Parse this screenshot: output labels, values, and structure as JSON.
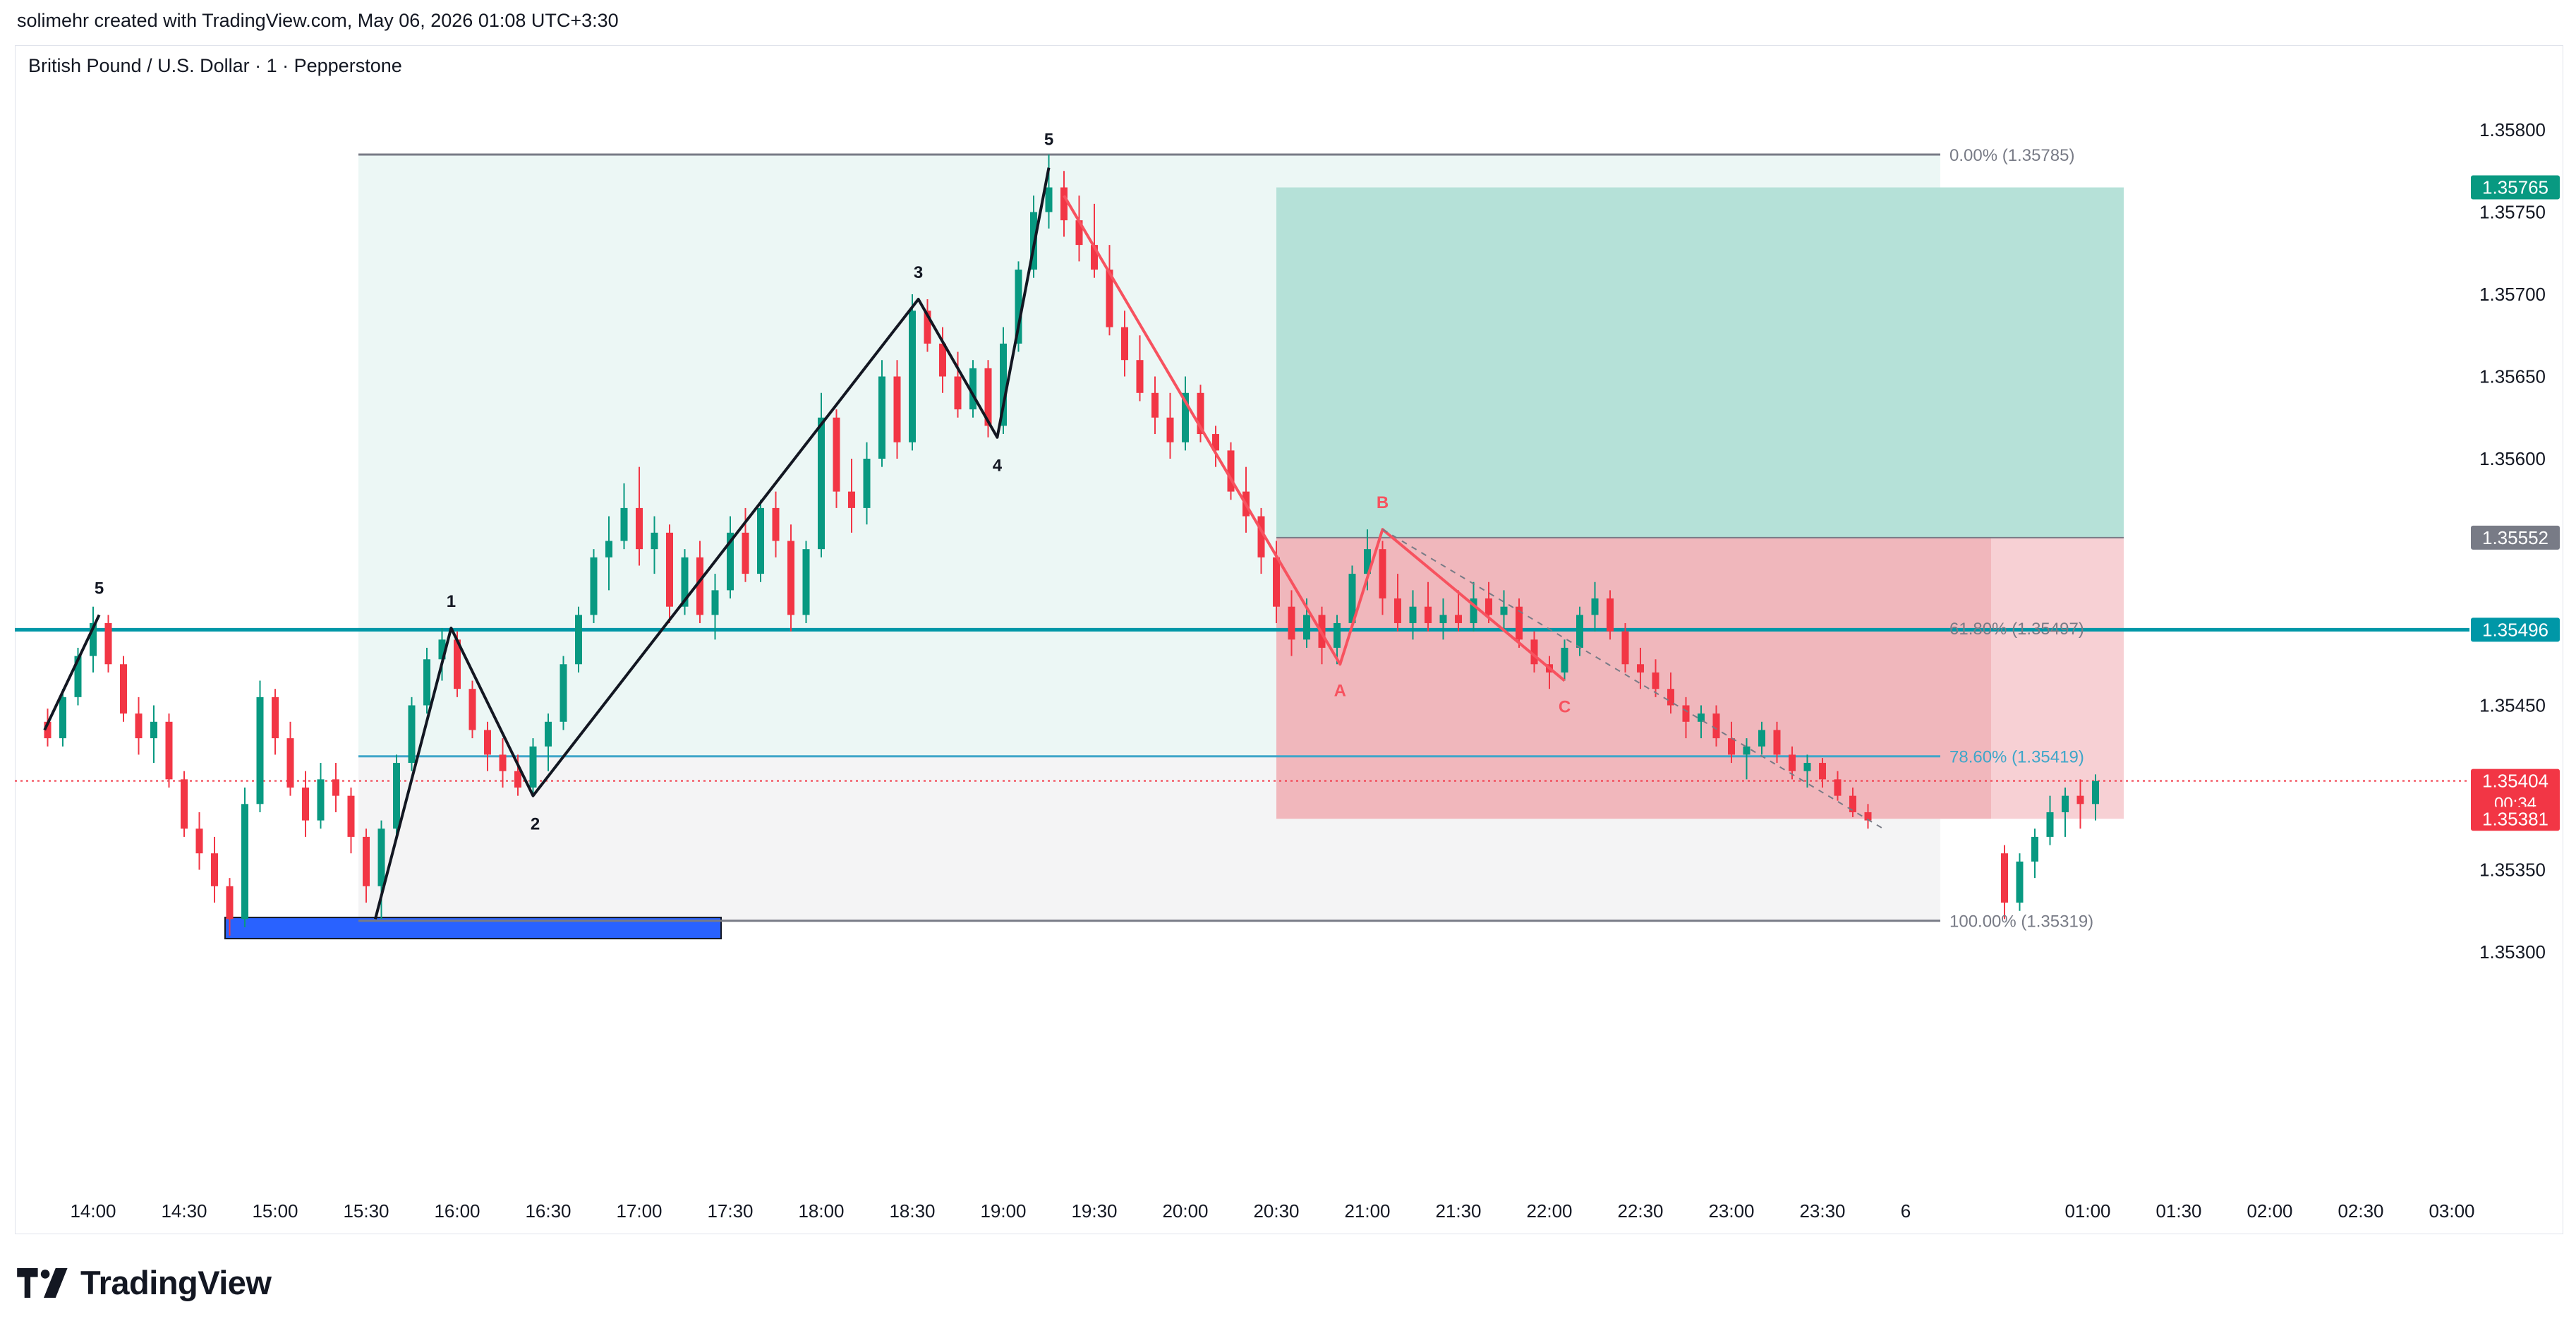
{
  "header": {
    "attribution": "solimehr created with TradingView.com, May 06, 2026 01:08 UTC+3:30"
  },
  "symbol": {
    "title": "British Pound / U.S. Dollar · 1 · Pepperstone"
  },
  "logo": {
    "text": "TradingView",
    "icon": "tradingview-logo-icon"
  },
  "colors": {
    "bull": "#089981",
    "bear": "#f23645",
    "level_line": "#0097a7",
    "fib_line": "#787b86",
    "fib_text": "#787b86",
    "fib_786": "#3ea6c9",
    "profit_zone": "#b2dfd6",
    "loss_zone": "#f0b3b8",
    "wave_line": "#131722",
    "abc_line": "#f7525f",
    "order_block": "#2962ff"
  },
  "chart_data": {
    "type": "candlestick",
    "title": "British Pound / U.S. Dollar · 1 · Pepperstone",
    "x_ticks": [
      "14:00",
      "14:30",
      "15:00",
      "15:30",
      "16:00",
      "16:30",
      "17:00",
      "17:30",
      "18:00",
      "18:30",
      "19:00",
      "19:30",
      "20:00",
      "20:30",
      "21:00",
      "21:30",
      "22:00",
      "22:30",
      "23:00",
      "23:30",
      "6",
      "01:00",
      "01:30",
      "02:00",
      "02:30",
      "03:00"
    ],
    "y_ticks": [
      "1.35800",
      "1.35750",
      "1.35700",
      "1.35650",
      "1.35600",
      "1.35450",
      "1.35350",
      "1.35300"
    ],
    "ylim": [
      1.35283,
      1.35836
    ],
    "price_labels": [
      {
        "text": "1.35765",
        "value": 1.35765,
        "color": "#089981"
      },
      {
        "text": "1.35552",
        "value": 1.35552,
        "color": "#787b86"
      },
      {
        "text": "1.35496",
        "value": 1.35496,
        "color": "#0097a7"
      },
      {
        "text": "1.35404",
        "value": 1.35404,
        "color": "#f23645",
        "sub": "00:34"
      },
      {
        "text": "1.35381",
        "value": 1.35381,
        "color": "#f23645"
      }
    ],
    "fib_levels": [
      {
        "label": "0.00% (1.35785)",
        "value": 1.35785
      },
      {
        "label": "61.80% (1.35497)",
        "value": 1.35497
      },
      {
        "label": "78.60% (1.35419)",
        "value": 1.35419
      },
      {
        "label": "100.00% (1.35319)",
        "value": 1.35319
      }
    ],
    "horizontal_level": 1.35496,
    "last_price": 1.35404,
    "position": {
      "stop": 1.35381,
      "entry": 1.35552,
      "target": 1.35765,
      "from": "20:30",
      "to": "01:25"
    },
    "impulse_waves": [
      {
        "label": "1",
        "time": "15:58",
        "price": 1.35497
      },
      {
        "label": "2",
        "time": "16:25",
        "price": 1.35395
      },
      {
        "label": "3",
        "time": "18:32",
        "price": 1.35697
      },
      {
        "label": "4",
        "time": "18:58",
        "price": 1.35613
      },
      {
        "label": "5",
        "time": "19:15",
        "price": 1.35777
      }
    ],
    "prior_wave": [
      {
        "label": "",
        "time": "13:46",
        "price": 1.35435
      },
      {
        "label": "5",
        "time": "14:02",
        "price": 1.35505
      }
    ],
    "abc_waves": [
      {
        "label": "",
        "time": "19:20",
        "price": 1.3576
      },
      {
        "label": "A",
        "time": "20:51",
        "price": 1.35475
      },
      {
        "label": "B",
        "time": "21:05",
        "price": 1.35557
      },
      {
        "label": "C",
        "time": "22:05",
        "price": 1.35465
      }
    ],
    "candles": [
      {
        "t": "13:45",
        "o": 1.3544,
        "h": 1.35448,
        "l": 1.35425,
        "c": 1.3543
      },
      {
        "t": "13:50",
        "o": 1.3543,
        "h": 1.3546,
        "l": 1.35425,
        "c": 1.35455
      },
      {
        "t": "13:55",
        "o": 1.35455,
        "h": 1.35485,
        "l": 1.3545,
        "c": 1.3548
      },
      {
        "t": "14:00",
        "o": 1.3548,
        "h": 1.3551,
        "l": 1.3547,
        "c": 1.355
      },
      {
        "t": "14:05",
        "o": 1.355,
        "h": 1.35505,
        "l": 1.3547,
        "c": 1.35475
      },
      {
        "t": "14:10",
        "o": 1.35475,
        "h": 1.3548,
        "l": 1.3544,
        "c": 1.35445
      },
      {
        "t": "14:15",
        "o": 1.35445,
        "h": 1.35455,
        "l": 1.3542,
        "c": 1.3543
      },
      {
        "t": "14:20",
        "o": 1.3543,
        "h": 1.3545,
        "l": 1.35415,
        "c": 1.3544
      },
      {
        "t": "14:25",
        "o": 1.3544,
        "h": 1.35445,
        "l": 1.354,
        "c": 1.35405
      },
      {
        "t": "14:30",
        "o": 1.35405,
        "h": 1.3541,
        "l": 1.3537,
        "c": 1.35375
      },
      {
        "t": "14:35",
        "o": 1.35375,
        "h": 1.35385,
        "l": 1.3535,
        "c": 1.3536
      },
      {
        "t": "14:40",
        "o": 1.3536,
        "h": 1.3537,
        "l": 1.3533,
        "c": 1.3534
      },
      {
        "t": "14:45",
        "o": 1.3534,
        "h": 1.35345,
        "l": 1.3531,
        "c": 1.3532
      },
      {
        "t": "14:50",
        "o": 1.3532,
        "h": 1.354,
        "l": 1.35315,
        "c": 1.3539
      },
      {
        "t": "14:55",
        "o": 1.3539,
        "h": 1.35465,
        "l": 1.35385,
        "c": 1.35455
      },
      {
        "t": "15:00",
        "o": 1.35455,
        "h": 1.3546,
        "l": 1.3542,
        "c": 1.3543
      },
      {
        "t": "15:05",
        "o": 1.3543,
        "h": 1.3544,
        "l": 1.35395,
        "c": 1.354
      },
      {
        "t": "15:10",
        "o": 1.354,
        "h": 1.3541,
        "l": 1.3537,
        "c": 1.3538
      },
      {
        "t": "15:15",
        "o": 1.3538,
        "h": 1.35415,
        "l": 1.35375,
        "c": 1.35405
      },
      {
        "t": "15:20",
        "o": 1.35405,
        "h": 1.35415,
        "l": 1.35385,
        "c": 1.35395
      },
      {
        "t": "15:25",
        "o": 1.35395,
        "h": 1.354,
        "l": 1.3536,
        "c": 1.3537
      },
      {
        "t": "15:30",
        "o": 1.3537,
        "h": 1.35375,
        "l": 1.3533,
        "c": 1.3534
      },
      {
        "t": "15:35",
        "o": 1.3534,
        "h": 1.3538,
        "l": 1.3532,
        "c": 1.35375
      },
      {
        "t": "15:40",
        "o": 1.35375,
        "h": 1.3542,
        "l": 1.3537,
        "c": 1.35415
      },
      {
        "t": "15:45",
        "o": 1.35415,
        "h": 1.35455,
        "l": 1.3541,
        "c": 1.3545
      },
      {
        "t": "15:50",
        "o": 1.3545,
        "h": 1.35485,
        "l": 1.35445,
        "c": 1.35478
      },
      {
        "t": "15:55",
        "o": 1.35478,
        "h": 1.35497,
        "l": 1.35465,
        "c": 1.3549
      },
      {
        "t": "16:00",
        "o": 1.3549,
        "h": 1.35495,
        "l": 1.35455,
        "c": 1.3546
      },
      {
        "t": "16:05",
        "o": 1.3546,
        "h": 1.35465,
        "l": 1.3543,
        "c": 1.35435
      },
      {
        "t": "16:10",
        "o": 1.35435,
        "h": 1.3544,
        "l": 1.3541,
        "c": 1.3542
      },
      {
        "t": "16:15",
        "o": 1.3542,
        "h": 1.3543,
        "l": 1.354,
        "c": 1.3541
      },
      {
        "t": "16:20",
        "o": 1.3541,
        "h": 1.3542,
        "l": 1.35395,
        "c": 1.354
      },
      {
        "t": "16:25",
        "o": 1.354,
        "h": 1.3543,
        "l": 1.35395,
        "c": 1.35425
      },
      {
        "t": "16:30",
        "o": 1.35425,
        "h": 1.35445,
        "l": 1.3541,
        "c": 1.3544
      },
      {
        "t": "16:35",
        "o": 1.3544,
        "h": 1.3548,
        "l": 1.35435,
        "c": 1.35475
      },
      {
        "t": "16:40",
        "o": 1.35475,
        "h": 1.3551,
        "l": 1.3547,
        "c": 1.35505
      },
      {
        "t": "16:45",
        "o": 1.35505,
        "h": 1.35545,
        "l": 1.355,
        "c": 1.3554
      },
      {
        "t": "16:50",
        "o": 1.3554,
        "h": 1.35565,
        "l": 1.3552,
        "c": 1.3555
      },
      {
        "t": "16:55",
        "o": 1.3555,
        "h": 1.35585,
        "l": 1.35545,
        "c": 1.3557
      },
      {
        "t": "17:00",
        "o": 1.3557,
        "h": 1.35595,
        "l": 1.35535,
        "c": 1.35545
      },
      {
        "t": "17:05",
        "o": 1.35545,
        "h": 1.35565,
        "l": 1.3553,
        "c": 1.35555
      },
      {
        "t": "17:10",
        "o": 1.35555,
        "h": 1.3556,
        "l": 1.355,
        "c": 1.3551
      },
      {
        "t": "17:15",
        "o": 1.3551,
        "h": 1.35545,
        "l": 1.35505,
        "c": 1.3554
      },
      {
        "t": "17:20",
        "o": 1.3554,
        "h": 1.3555,
        "l": 1.355,
        "c": 1.35505
      },
      {
        "t": "17:25",
        "o": 1.35505,
        "h": 1.3553,
        "l": 1.3549,
        "c": 1.3552
      },
      {
        "t": "17:30",
        "o": 1.3552,
        "h": 1.35565,
        "l": 1.35515,
        "c": 1.35555
      },
      {
        "t": "17:35",
        "o": 1.35555,
        "h": 1.3557,
        "l": 1.35525,
        "c": 1.3553
      },
      {
        "t": "17:40",
        "o": 1.3553,
        "h": 1.35575,
        "l": 1.35525,
        "c": 1.3557
      },
      {
        "t": "17:45",
        "o": 1.3557,
        "h": 1.3558,
        "l": 1.3554,
        "c": 1.3555
      },
      {
        "t": "17:50",
        "o": 1.3555,
        "h": 1.3556,
        "l": 1.35495,
        "c": 1.35505
      },
      {
        "t": "17:55",
        "o": 1.35505,
        "h": 1.3555,
        "l": 1.355,
        "c": 1.35545
      },
      {
        "t": "18:00",
        "o": 1.35545,
        "h": 1.3564,
        "l": 1.3554,
        "c": 1.35625
      },
      {
        "t": "18:05",
        "o": 1.35625,
        "h": 1.3563,
        "l": 1.3557,
        "c": 1.3558
      },
      {
        "t": "18:10",
        "o": 1.3558,
        "h": 1.356,
        "l": 1.35555,
        "c": 1.3557
      },
      {
        "t": "18:15",
        "o": 1.3557,
        "h": 1.3561,
        "l": 1.3556,
        "c": 1.356
      },
      {
        "t": "18:20",
        "o": 1.356,
        "h": 1.3566,
        "l": 1.35595,
        "c": 1.3565
      },
      {
        "t": "18:25",
        "o": 1.3565,
        "h": 1.3566,
        "l": 1.356,
        "c": 1.3561
      },
      {
        "t": "18:30",
        "o": 1.3561,
        "h": 1.357,
        "l": 1.35605,
        "c": 1.3569
      },
      {
        "t": "18:35",
        "o": 1.3569,
        "h": 1.35697,
        "l": 1.35665,
        "c": 1.3567
      },
      {
        "t": "18:40",
        "o": 1.3567,
        "h": 1.3568,
        "l": 1.3564,
        "c": 1.3565
      },
      {
        "t": "18:45",
        "o": 1.3565,
        "h": 1.35665,
        "l": 1.35625,
        "c": 1.3563
      },
      {
        "t": "18:50",
        "o": 1.3563,
        "h": 1.3566,
        "l": 1.35625,
        "c": 1.35655
      },
      {
        "t": "18:55",
        "o": 1.35655,
        "h": 1.3566,
        "l": 1.35613,
        "c": 1.3562
      },
      {
        "t": "19:00",
        "o": 1.3562,
        "h": 1.3568,
        "l": 1.35615,
        "c": 1.3567
      },
      {
        "t": "19:05",
        "o": 1.3567,
        "h": 1.3572,
        "l": 1.35665,
        "c": 1.35715
      },
      {
        "t": "19:10",
        "o": 1.35715,
        "h": 1.3576,
        "l": 1.3571,
        "c": 1.3575
      },
      {
        "t": "19:15",
        "o": 1.3575,
        "h": 1.35785,
        "l": 1.3574,
        "c": 1.35765
      },
      {
        "t": "19:20",
        "o": 1.35765,
        "h": 1.35775,
        "l": 1.35735,
        "c": 1.35745
      },
      {
        "t": "19:25",
        "o": 1.35745,
        "h": 1.3576,
        "l": 1.3572,
        "c": 1.3573
      },
      {
        "t": "19:30",
        "o": 1.3573,
        "h": 1.35755,
        "l": 1.3571,
        "c": 1.35715
      },
      {
        "t": "19:35",
        "o": 1.35715,
        "h": 1.3573,
        "l": 1.35675,
        "c": 1.3568
      },
      {
        "t": "19:40",
        "o": 1.3568,
        "h": 1.3569,
        "l": 1.3565,
        "c": 1.3566
      },
      {
        "t": "19:45",
        "o": 1.3566,
        "h": 1.35675,
        "l": 1.35635,
        "c": 1.3564
      },
      {
        "t": "19:50",
        "o": 1.3564,
        "h": 1.3565,
        "l": 1.35615,
        "c": 1.35625
      },
      {
        "t": "19:55",
        "o": 1.35625,
        "h": 1.3564,
        "l": 1.356,
        "c": 1.3561
      },
      {
        "t": "20:00",
        "o": 1.3561,
        "h": 1.3565,
        "l": 1.35605,
        "c": 1.3564
      },
      {
        "t": "20:05",
        "o": 1.3564,
        "h": 1.35645,
        "l": 1.3561,
        "c": 1.35615
      },
      {
        "t": "20:10",
        "o": 1.35615,
        "h": 1.3562,
        "l": 1.35595,
        "c": 1.35605
      },
      {
        "t": "20:15",
        "o": 1.35605,
        "h": 1.3561,
        "l": 1.35575,
        "c": 1.3558
      },
      {
        "t": "20:20",
        "o": 1.3558,
        "h": 1.35595,
        "l": 1.35555,
        "c": 1.35565
      },
      {
        "t": "20:25",
        "o": 1.35565,
        "h": 1.3557,
        "l": 1.3553,
        "c": 1.3554
      },
      {
        "t": "20:30",
        "o": 1.3554,
        "h": 1.3555,
        "l": 1.355,
        "c": 1.3551
      },
      {
        "t": "20:35",
        "o": 1.3551,
        "h": 1.3552,
        "l": 1.3548,
        "c": 1.3549
      },
      {
        "t": "20:40",
        "o": 1.3549,
        "h": 1.35515,
        "l": 1.35485,
        "c": 1.35505
      },
      {
        "t": "20:45",
        "o": 1.35505,
        "h": 1.3551,
        "l": 1.35475,
        "c": 1.35485
      },
      {
        "t": "20:50",
        "o": 1.35485,
        "h": 1.35505,
        "l": 1.35475,
        "c": 1.355
      },
      {
        "t": "20:55",
        "o": 1.355,
        "h": 1.35535,
        "l": 1.35495,
        "c": 1.3553
      },
      {
        "t": "21:00",
        "o": 1.3553,
        "h": 1.35557,
        "l": 1.3552,
        "c": 1.35545
      },
      {
        "t": "21:05",
        "o": 1.35545,
        "h": 1.3555,
        "l": 1.35505,
        "c": 1.35515
      },
      {
        "t": "21:10",
        "o": 1.35515,
        "h": 1.3553,
        "l": 1.35495,
        "c": 1.355
      },
      {
        "t": "21:15",
        "o": 1.355,
        "h": 1.3552,
        "l": 1.3549,
        "c": 1.3551
      },
      {
        "t": "21:20",
        "o": 1.3551,
        "h": 1.35525,
        "l": 1.35495,
        "c": 1.355
      },
      {
        "t": "21:25",
        "o": 1.355,
        "h": 1.35515,
        "l": 1.3549,
        "c": 1.35505
      },
      {
        "t": "21:30",
        "o": 1.35505,
        "h": 1.3552,
        "l": 1.35495,
        "c": 1.355
      },
      {
        "t": "21:35",
        "o": 1.355,
        "h": 1.35525,
        "l": 1.35495,
        "c": 1.35515
      },
      {
        "t": "21:40",
        "o": 1.35515,
        "h": 1.35525,
        "l": 1.355,
        "c": 1.35505
      },
      {
        "t": "21:45",
        "o": 1.35505,
        "h": 1.3552,
        "l": 1.35495,
        "c": 1.3551
      },
      {
        "t": "21:50",
        "o": 1.3551,
        "h": 1.35515,
        "l": 1.35485,
        "c": 1.3549
      },
      {
        "t": "21:55",
        "o": 1.3549,
        "h": 1.35495,
        "l": 1.3547,
        "c": 1.35475
      },
      {
        "t": "22:00",
        "o": 1.35475,
        "h": 1.3548,
        "l": 1.3546,
        "c": 1.3547
      },
      {
        "t": "22:05",
        "o": 1.3547,
        "h": 1.3549,
        "l": 1.35465,
        "c": 1.35485
      },
      {
        "t": "22:10",
        "o": 1.35485,
        "h": 1.3551,
        "l": 1.3548,
        "c": 1.35505
      },
      {
        "t": "22:15",
        "o": 1.35505,
        "h": 1.35525,
        "l": 1.35495,
        "c": 1.35515
      },
      {
        "t": "22:20",
        "o": 1.35515,
        "h": 1.3552,
        "l": 1.3549,
        "c": 1.35495
      },
      {
        "t": "22:25",
        "o": 1.35495,
        "h": 1.355,
        "l": 1.3547,
        "c": 1.35475
      },
      {
        "t": "22:30",
        "o": 1.35475,
        "h": 1.35485,
        "l": 1.3546,
        "c": 1.3547
      },
      {
        "t": "22:35",
        "o": 1.3547,
        "h": 1.35478,
        "l": 1.35455,
        "c": 1.3546
      },
      {
        "t": "22:40",
        "o": 1.3546,
        "h": 1.3547,
        "l": 1.35445,
        "c": 1.3545
      },
      {
        "t": "22:45",
        "o": 1.3545,
        "h": 1.35455,
        "l": 1.3543,
        "c": 1.3544
      },
      {
        "t": "22:50",
        "o": 1.3544,
        "h": 1.3545,
        "l": 1.3543,
        "c": 1.35445
      },
      {
        "t": "22:55",
        "o": 1.35445,
        "h": 1.3545,
        "l": 1.35425,
        "c": 1.3543
      },
      {
        "t": "23:00",
        "o": 1.3543,
        "h": 1.3544,
        "l": 1.35415,
        "c": 1.3542
      },
      {
        "t": "23:05",
        "o": 1.3542,
        "h": 1.3543,
        "l": 1.35405,
        "c": 1.35425
      },
      {
        "t": "23:10",
        "o": 1.35425,
        "h": 1.3544,
        "l": 1.3542,
        "c": 1.35435
      },
      {
        "t": "23:15",
        "o": 1.35435,
        "h": 1.3544,
        "l": 1.35415,
        "c": 1.3542
      },
      {
        "t": "23:20",
        "o": 1.3542,
        "h": 1.35425,
        "l": 1.35405,
        "c": 1.3541
      },
      {
        "t": "23:25",
        "o": 1.3541,
        "h": 1.3542,
        "l": 1.354,
        "c": 1.35415
      },
      {
        "t": "23:30",
        "o": 1.35415,
        "h": 1.35418,
        "l": 1.354,
        "c": 1.35405
      },
      {
        "t": "23:35",
        "o": 1.35405,
        "h": 1.3541,
        "l": 1.35392,
        "c": 1.35395
      },
      {
        "t": "23:40",
        "o": 1.35395,
        "h": 1.354,
        "l": 1.35382,
        "c": 1.35385
      },
      {
        "t": "23:45",
        "o": 1.35385,
        "h": 1.3539,
        "l": 1.35375,
        "c": 1.3538
      },
      {
        "t": "00:30",
        "o": 1.3536,
        "h": 1.35365,
        "l": 1.3532,
        "c": 1.3533
      },
      {
        "t": "00:35",
        "o": 1.3533,
        "h": 1.3536,
        "l": 1.35325,
        "c": 1.35355
      },
      {
        "t": "00:40",
        "o": 1.35355,
        "h": 1.35375,
        "l": 1.35345,
        "c": 1.3537
      },
      {
        "t": "00:45",
        "o": 1.3537,
        "h": 1.35395,
        "l": 1.35365,
        "c": 1.35385
      },
      {
        "t": "00:50",
        "o": 1.35385,
        "h": 1.354,
        "l": 1.3537,
        "c": 1.35395
      },
      {
        "t": "00:55",
        "o": 1.35395,
        "h": 1.35405,
        "l": 1.35375,
        "c": 1.3539
      },
      {
        "t": "01:00",
        "o": 1.3539,
        "h": 1.35408,
        "l": 1.3538,
        "c": 1.35404
      }
    ]
  }
}
